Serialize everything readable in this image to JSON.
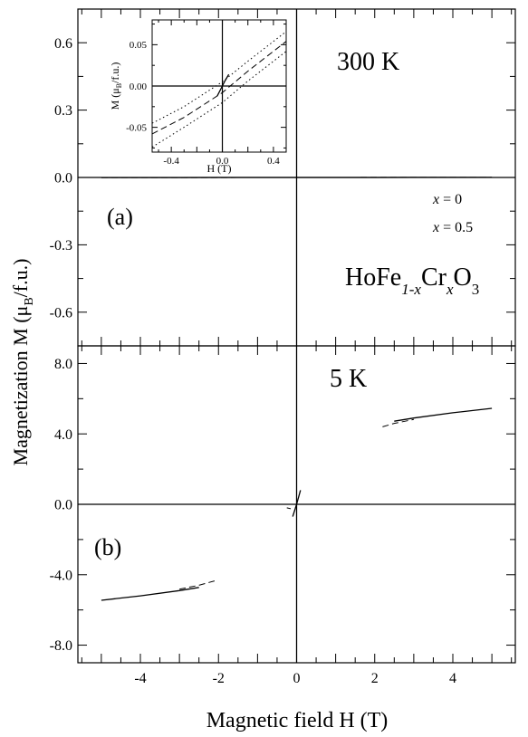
{
  "figure": {
    "ylabel_main": "Magnetization M (μ",
    "ylabel_sub": "B",
    "ylabel_tail": "/f.u.)",
    "xlabel": "Magnetic field H (T)"
  },
  "legend": {
    "entries": [
      {
        "x_label": "x",
        "rest": " = 0",
        "style": "solid"
      },
      {
        "x_label": "x",
        "rest": " = 0.5",
        "style": "dashed"
      }
    ]
  },
  "compound": {
    "base": "HoFe",
    "sub1": "1-x",
    "mid": "Cr",
    "sub2": "x",
    "tail": "O",
    "sub3": "3"
  },
  "chart_data": [
    {
      "id": "panel-a",
      "type": "line",
      "panel_label": "(a)",
      "temperature_label": "300 K",
      "xlim": [
        -5.6,
        5.6
      ],
      "ylim": [
        -0.75,
        0.75
      ],
      "y_ticks": [
        0.6,
        0.3,
        0.0,
        -0.3,
        -0.6
      ],
      "y_tick_labels": [
        "0.6",
        "0.3",
        "0.0",
        "-0.3",
        "-0.6"
      ],
      "series": [
        {
          "style": "solid",
          "x": [
            -5,
            -4,
            -3,
            -2,
            -1,
            0,
            1,
            2,
            3,
            4,
            5
          ],
          "y": [
            -0.0005,
            -0.0004,
            -0.0003,
            -0.0002,
            -0.0001,
            0.0,
            0.0001,
            0.0002,
            0.0003,
            0.0004,
            0.0005
          ]
        },
        {
          "style": "dashed",
          "x": [
            -5,
            -4,
            -3,
            -2,
            -1,
            0,
            1,
            2,
            3,
            4,
            5
          ],
          "y": [
            -0.0006,
            -0.0005,
            -0.0004,
            -0.0003,
            -0.0001,
            0.0,
            0.0001,
            0.0003,
            0.0004,
            0.0005,
            0.0006
          ]
        }
      ]
    },
    {
      "id": "inset",
      "type": "line",
      "xlabel": "H (T)",
      "ylabel_main": "M (μ",
      "ylabel_sub": "B",
      "ylabel_tail": "/f.u.)",
      "xlim": [
        -0.55,
        0.5
      ],
      "ylim": [
        -0.08,
        0.08
      ],
      "x_ticks": [
        -0.4,
        0.0,
        0.4
      ],
      "x_tick_labels": [
        "-0.4",
        "0.0",
        "0.4"
      ],
      "y_ticks": [
        0.05,
        0.0,
        -0.05
      ],
      "y_tick_labels": [
        "0.05",
        "0.00",
        "-0.05"
      ],
      "series": [
        {
          "style": "solid",
          "x": [
            -0.04,
            -0.02,
            0.0,
            0.02,
            0.05
          ],
          "y": [
            -0.012,
            -0.006,
            0.0,
            0.006,
            0.014
          ]
        },
        {
          "style": "dotted",
          "x": [
            -0.55,
            -0.3,
            0.0,
            0.2,
            0.5
          ],
          "y": [
            -0.045,
            -0.025,
            0.005,
            0.03,
            0.066
          ]
        },
        {
          "style": "dotted",
          "x": [
            -0.55,
            -0.3,
            0.0,
            0.2,
            0.5
          ],
          "y": [
            -0.074,
            -0.05,
            -0.02,
            0.006,
            0.042
          ]
        },
        {
          "style": "dashed",
          "x": [
            -0.55,
            -0.3,
            0.0,
            0.2,
            0.5
          ],
          "y": [
            -0.058,
            -0.038,
            -0.008,
            0.018,
            0.054
          ]
        }
      ]
    },
    {
      "id": "panel-b",
      "type": "line",
      "panel_label": "(b)",
      "temperature_label": "5 K",
      "xlabel": "Magnetic field H (T)",
      "xlim": [
        -5.6,
        5.6
      ],
      "ylim": [
        -9.0,
        9.0
      ],
      "x_ticks": [
        -4,
        -2,
        0,
        2,
        4
      ],
      "x_tick_labels": [
        "-4",
        "-2",
        "0",
        "2",
        "4"
      ],
      "y_ticks": [
        8.0,
        4.0,
        0.0,
        -4.0,
        -8.0
      ],
      "y_tick_labels": [
        "8.0",
        "4.0",
        "0.0",
        "-4.0",
        "-8.0"
      ],
      "series": [
        {
          "style": "solid",
          "x": [
            -5.0,
            -4.0,
            -3.0,
            -2.5
          ],
          "y": [
            -5.45,
            -5.2,
            -4.9,
            -4.72
          ]
        },
        {
          "style": "dashed",
          "x": [
            -3.0,
            -2.5,
            -2.1
          ],
          "y": [
            -4.82,
            -4.6,
            -4.35
          ]
        },
        {
          "style": "solid",
          "x": [
            2.5,
            3.0,
            4.0,
            5.0
          ],
          "y": [
            4.72,
            4.9,
            5.2,
            5.45
          ]
        },
        {
          "style": "dashed",
          "x": [
            2.2,
            2.5,
            3.0
          ],
          "y": [
            4.4,
            4.6,
            4.82
          ]
        },
        {
          "style": "solid",
          "x": [
            -0.1,
            0.0,
            0.1
          ],
          "y": [
            -0.7,
            0.0,
            0.8
          ]
        },
        {
          "style": "dashed",
          "x": [
            -0.25,
            -0.15
          ],
          "y": [
            -0.2,
            -0.25
          ]
        }
      ]
    }
  ]
}
